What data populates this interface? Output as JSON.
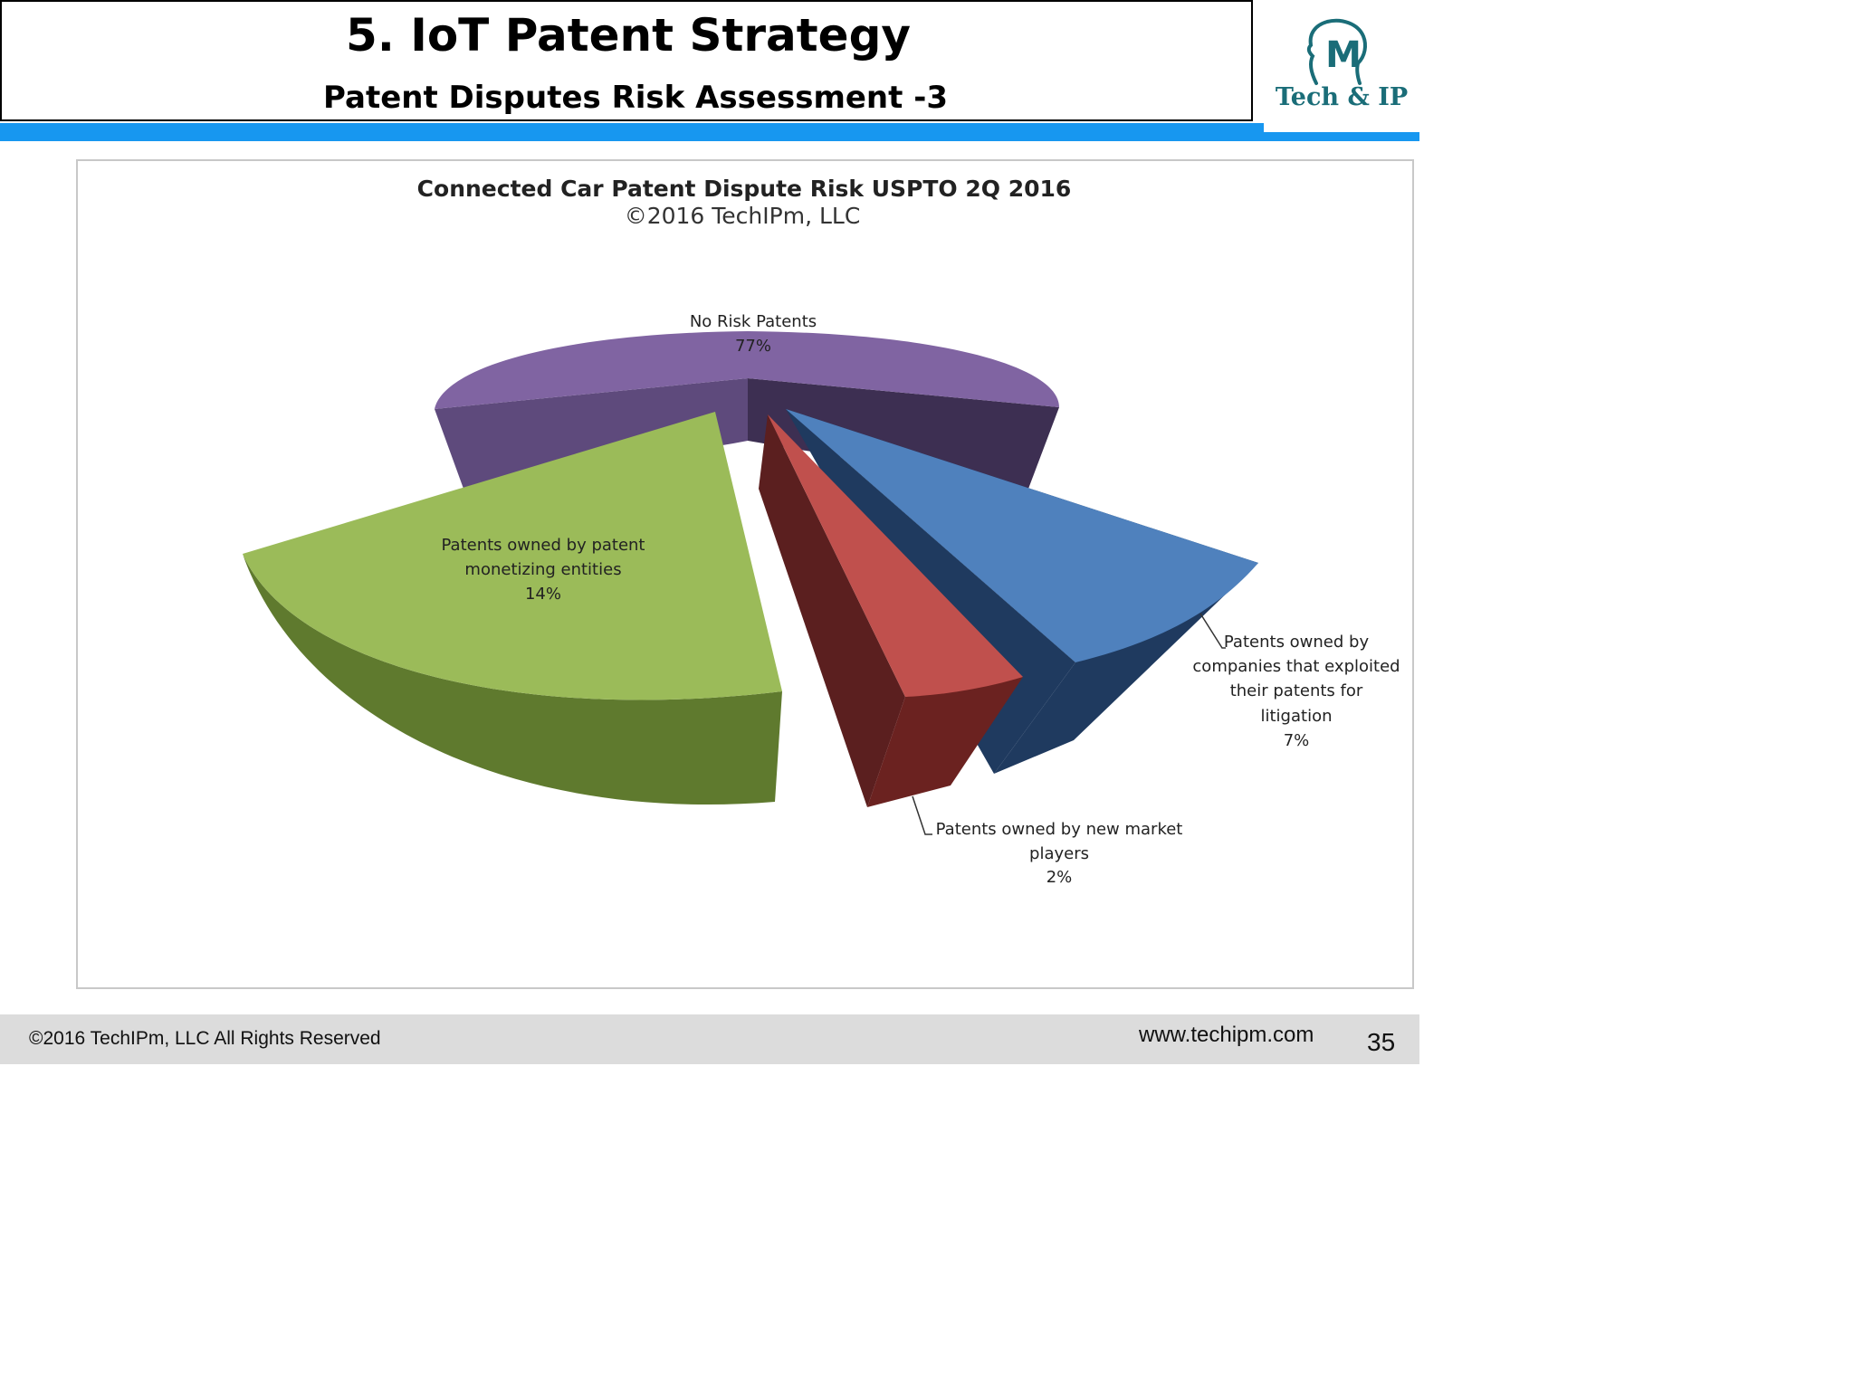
{
  "slide": {
    "title": "5. IoT Patent Strategy",
    "subtitle": "Patent Disputes Risk Assessment -3",
    "logo_text": "Tech & IP",
    "logo_letter": "M",
    "accent_color": "#1797f0",
    "logo_color": "#1a6d78"
  },
  "footer": {
    "copyright": "©2016 TechIPm, LLC All Rights Reserved",
    "url": "www.techipm.com",
    "page_number": "35"
  },
  "chart_data": {
    "type": "pie",
    "title": "Connected Car Patent Dispute Risk USPTO 2Q 2016",
    "subtitle": "©2016 TechIPm,  LLC",
    "style": "3d-exploded",
    "slices": [
      {
        "label_lines": [
          "No Risk Patents"
        ],
        "value_label": "77%",
        "value": 77,
        "color": "#8064a2"
      },
      {
        "label_lines": [
          "Patents owned by",
          "companies that exploited",
          "their patents for",
          "litigation"
        ],
        "value_label": "7%",
        "value": 7,
        "color": "#4f81bd"
      },
      {
        "label_lines": [
          "Patents owned by new market",
          "players"
        ],
        "value_label": "2%",
        "value": 2,
        "color": "#c0504d"
      },
      {
        "label_lines": [
          "Patents owned by patent",
          "monetizing entities"
        ],
        "value_label": "14%",
        "value": 14,
        "color": "#9bbb59"
      }
    ]
  }
}
